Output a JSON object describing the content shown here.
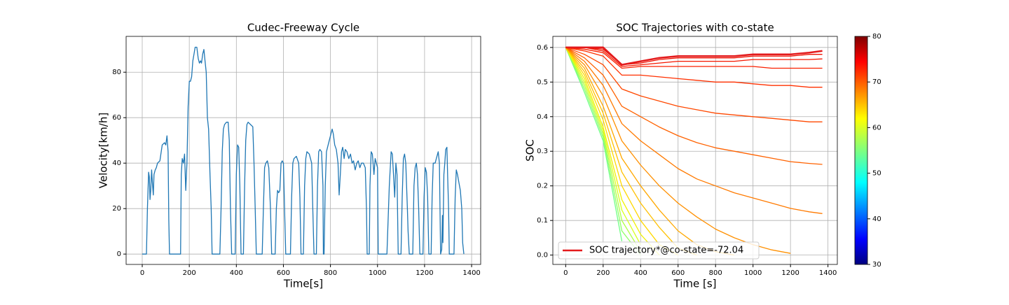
{
  "chart_data": [
    {
      "type": "line",
      "title": "Cudec-Freeway Cycle",
      "xlabel": "Time[s]",
      "ylabel": "Velocity[km/h]",
      "xlim": [
        -68.5,
        1438.5
      ],
      "ylim": [
        -4.56,
        95.76
      ],
      "xticks": [
        0,
        200,
        400,
        600,
        800,
        1000,
        1200,
        1400
      ],
      "yticks": [
        0,
        20,
        40,
        60,
        80
      ],
      "grid": true,
      "x": [
        0,
        15,
        18,
        22,
        27,
        30,
        33,
        36,
        40,
        44,
        47,
        50,
        55,
        60,
        65,
        75,
        85,
        95,
        100,
        105,
        110,
        113,
        116,
        160,
        163,
        166,
        170,
        175,
        180,
        185,
        190,
        195,
        200,
        205,
        210,
        215,
        220,
        225,
        232,
        238,
        243,
        248,
        252,
        257,
        262,
        267,
        272,
        277,
        282,
        288,
        293,
        297,
        330,
        335,
        340,
        345,
        350,
        358,
        365,
        370,
        375,
        380,
        395,
        400,
        405,
        410,
        415,
        420,
        430,
        435,
        440,
        445,
        450,
        460,
        470,
        475,
        480,
        485,
        510,
        515,
        520,
        525,
        532,
        538,
        545,
        550,
        565,
        570,
        575,
        580,
        585,
        590,
        595,
        600,
        605,
        610,
        630,
        635,
        640,
        645,
        655,
        665,
        670,
        675,
        685,
        690,
        695,
        700,
        710,
        720,
        725,
        730,
        740,
        745,
        750,
        755,
        762,
        768,
        770,
        773,
        778,
        783,
        790,
        800,
        807,
        812,
        818,
        825,
        832,
        837,
        842,
        847,
        852,
        858,
        863,
        870,
        878,
        885,
        892,
        898,
        905,
        912,
        918,
        925,
        932,
        940,
        948,
        953,
        956,
        965,
        968,
        973,
        978,
        985,
        990,
        995,
        1000,
        1003,
        1040,
        1050,
        1058,
        1063,
        1068,
        1073,
        1078,
        1083,
        1088,
        1100,
        1105,
        1110,
        1115,
        1120,
        1127,
        1130,
        1135,
        1150,
        1155,
        1160,
        1165,
        1170,
        1175,
        1180,
        1193,
        1198,
        1203,
        1208,
        1213,
        1218,
        1228,
        1232,
        1237,
        1245,
        1250,
        1258,
        1263,
        1268,
        1273,
        1276,
        1278,
        1282,
        1286,
        1290,
        1295,
        1298,
        1302,
        1305,
        1325,
        1330,
        1335,
        1340,
        1345,
        1352,
        1358,
        1362,
        1367
      ],
      "series": [
        {
          "color": "#1f77b4",
          "values": [
            0,
            0,
            0,
            20,
            36,
            34,
            24,
            28,
            37,
            30,
            26,
            35,
            37,
            38,
            40,
            41,
            48,
            49,
            48,
            52,
            45,
            15,
            0,
            0,
            0,
            35,
            42,
            40,
            44,
            28,
            40,
            65,
            76,
            76,
            78,
            85,
            88,
            91,
            91,
            86,
            84,
            85,
            84,
            88,
            90,
            85,
            80,
            60,
            55,
            35,
            20,
            0,
            0,
            20,
            45,
            55,
            57,
            58,
            58,
            50,
            20,
            0,
            0,
            35,
            48,
            47,
            30,
            0,
            0,
            30,
            50,
            57,
            58,
            57,
            56,
            40,
            20,
            0,
            0,
            20,
            38,
            40,
            41,
            38,
            20,
            0,
            0,
            20,
            28,
            27,
            28,
            40,
            41,
            40,
            20,
            0,
            0,
            25,
            40,
            42,
            43,
            40,
            25,
            0,
            0,
            30,
            42,
            45,
            44,
            40,
            20,
            0,
            0,
            30,
            45,
            46,
            45,
            30,
            0,
            0,
            30,
            45,
            48,
            52,
            55,
            53,
            48,
            46,
            40,
            26,
            35,
            45,
            47,
            42,
            46,
            45,
            42,
            44,
            40,
            41,
            37,
            40,
            41,
            38,
            40,
            40,
            38,
            20,
            0,
            0,
            30,
            45,
            44,
            35,
            42,
            40,
            38,
            0,
            0,
            30,
            45,
            44,
            35,
            25,
            40,
            35,
            0,
            0,
            25,
            42,
            44,
            40,
            20,
            10,
            0,
            0,
            30,
            38,
            40,
            35,
            20,
            0,
            0,
            25,
            38,
            36,
            25,
            0,
            0,
            25,
            40,
            40,
            42,
            45,
            40,
            0,
            2,
            17,
            5,
            35,
            40,
            46,
            47,
            35,
            20,
            0,
            0,
            25,
            37,
            35,
            32,
            28,
            20,
            5,
            0
          ]
        }
      ]
    },
    {
      "type": "line",
      "title": "SOC Trajectories with co-state",
      "xlabel": "Time [s]",
      "ylabel": "SOC",
      "xlim": [
        -68.5,
        1450
      ],
      "ylim": [
        -0.027,
        0.632
      ],
      "xticks": [
        0,
        200,
        400,
        600,
        800,
        1000,
        1200,
        1400
      ],
      "yticks": [
        {
          "value": 0,
          "label": "0.0"
        },
        0.1,
        0.2,
        0.3,
        0.4,
        0.5,
        0.6
      ],
      "grid": true,
      "legend": "lower left",
      "x": [
        0,
        100,
        200,
        300,
        400,
        500,
        600,
        700,
        800,
        900,
        1000,
        1100,
        1200,
        1300,
        1370
      ],
      "series": [
        {
          "name": "SOC trajectory*@co-state=-72.04",
          "color": "#e31a1c",
          "linewidth": 2.5,
          "values": [
            0.6,
            0.6,
            0.6,
            0.55,
            0.56,
            0.57,
            0.575,
            0.575,
            0.575,
            0.575,
            0.58,
            0.58,
            0.58,
            0.585,
            0.59
          ]
        },
        {
          "color": "#ee1100",
          "values": [
            0.6,
            0.6,
            0.595,
            0.55,
            0.555,
            0.565,
            0.57,
            0.57,
            0.57,
            0.57,
            0.575,
            0.575,
            0.575,
            0.58,
            0.58
          ]
        },
        {
          "color": "#f51800",
          "values": [
            0.6,
            0.6,
            0.59,
            0.545,
            0.55,
            0.555,
            0.56,
            0.56,
            0.56,
            0.56,
            0.565,
            0.565,
            0.565,
            0.565,
            0.567
          ]
        },
        {
          "color": "#fa2000",
          "values": [
            0.6,
            0.595,
            0.585,
            0.54,
            0.545,
            0.545,
            0.545,
            0.545,
            0.545,
            0.545,
            0.545,
            0.54,
            0.54,
            0.54,
            0.54
          ]
        },
        {
          "color": "#ff3000",
          "values": [
            0.6,
            0.59,
            0.575,
            0.52,
            0.52,
            0.515,
            0.51,
            0.505,
            0.5,
            0.5,
            0.495,
            0.49,
            0.49,
            0.485,
            0.485
          ]
        },
        {
          "color": "#ff4800",
          "values": [
            0.6,
            0.58,
            0.55,
            0.48,
            0.46,
            0.445,
            0.43,
            0.42,
            0.41,
            0.405,
            0.4,
            0.395,
            0.39,
            0.385,
            0.385
          ]
        },
        {
          "color": "#ff6200",
          "values": [
            0.6,
            0.57,
            0.52,
            0.43,
            0.4,
            0.37,
            0.345,
            0.325,
            0.31,
            0.3,
            0.29,
            0.28,
            0.27,
            0.265,
            0.262
          ]
        },
        {
          "color": "#ff7a00",
          "values": [
            0.6,
            0.56,
            0.49,
            0.38,
            0.33,
            0.29,
            0.25,
            0.22,
            0.2,
            0.18,
            0.165,
            0.15,
            0.135,
            0.125,
            0.12
          ]
        },
        {
          "color": "#ff9000",
          "values": [
            0.6,
            0.55,
            0.46,
            0.33,
            0.26,
            0.2,
            0.15,
            0.11,
            0.075,
            0.05,
            0.03,
            0.015,
            0.005,
            null,
            null
          ]
        },
        {
          "color": "#ffa800",
          "values": [
            0.6,
            0.54,
            0.43,
            0.28,
            0.2,
            0.13,
            0.07,
            0.03,
            0.01,
            0,
            null,
            null,
            null,
            null,
            null
          ]
        },
        {
          "color": "#ffc000",
          "values": [
            0.6,
            0.53,
            0.41,
            0.24,
            0.15,
            0.08,
            0.02,
            0,
            null,
            null,
            null,
            null,
            null,
            null,
            null
          ]
        },
        {
          "color": "#ffd800",
          "values": [
            0.6,
            0.52,
            0.39,
            0.2,
            0.1,
            0.03,
            0,
            null,
            null,
            null,
            null,
            null,
            null,
            null,
            null
          ]
        },
        {
          "color": "#f0f000",
          "values": [
            0.6,
            0.51,
            0.37,
            0.16,
            0.06,
            0,
            null,
            null,
            null,
            null,
            null,
            null,
            null,
            null,
            null
          ]
        },
        {
          "color": "#d8ff1e",
          "values": [
            0.6,
            0.5,
            0.36,
            0.13,
            0.03,
            null,
            null,
            null,
            null,
            null,
            null,
            null,
            null,
            null,
            null
          ]
        },
        {
          "color": "#b0ff46",
          "values": [
            0.6,
            0.49,
            0.35,
            0.1,
            0.01,
            null,
            null,
            null,
            null,
            null,
            null,
            null,
            null,
            null,
            null
          ]
        },
        {
          "color": "#90ff66",
          "values": [
            0.6,
            0.48,
            0.34,
            0.07,
            0,
            null,
            null,
            null,
            null,
            null,
            null,
            null,
            null,
            null,
            null
          ]
        },
        {
          "color": "#70ff86",
          "values": [
            0.6,
            0.47,
            0.33,
            0.04,
            null,
            null,
            null,
            null,
            null,
            null,
            null,
            null,
            null,
            null,
            null
          ]
        }
      ],
      "colorbar": {
        "colormap": "jet",
        "lim": [
          30,
          80
        ],
        "ticks": [
          30,
          40,
          50,
          60,
          70,
          80
        ]
      }
    }
  ]
}
